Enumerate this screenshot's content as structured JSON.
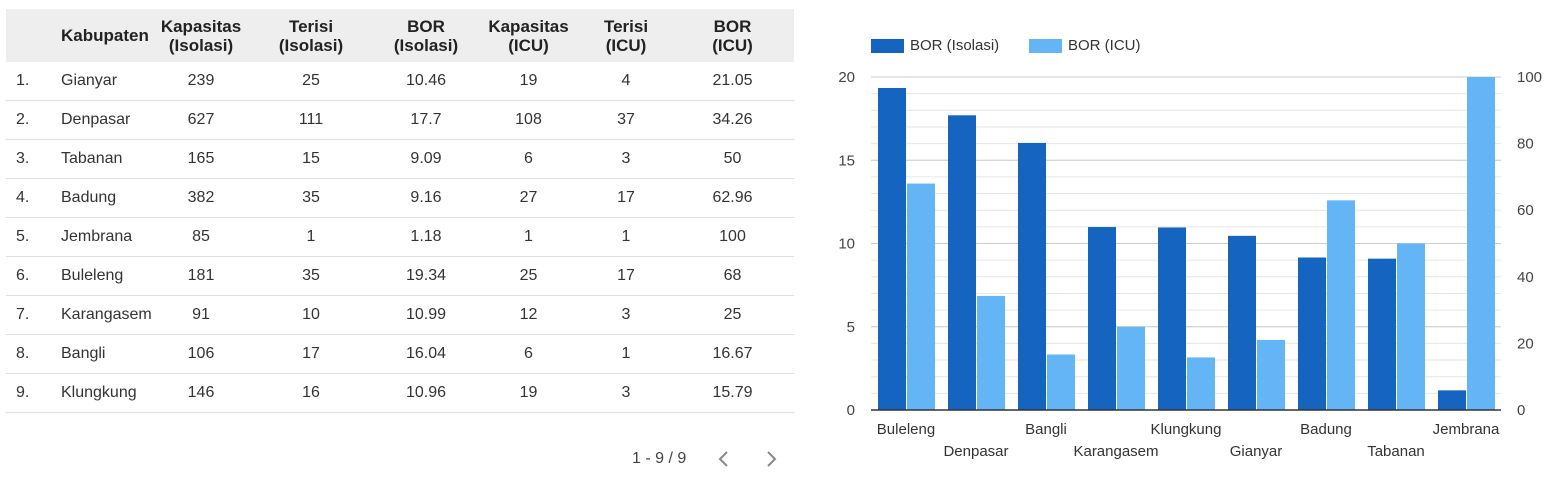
{
  "table": {
    "headers": {
      "name": "Kabupaten",
      "kap_iso": [
        "Kapasitas",
        "(Isolasi)"
      ],
      "ter_iso": [
        "Terisi",
        "(Isolasi)"
      ],
      "bor_iso": [
        "BOR",
        "(Isolasi)"
      ],
      "kap_icu": [
        "Kapasitas",
        "(ICU)"
      ],
      "ter_icu": [
        "Terisi",
        "(ICU)"
      ],
      "bor_icu": [
        "BOR",
        "(ICU)"
      ]
    },
    "rows": [
      {
        "no": "1.",
        "name": "Gianyar",
        "kap_iso": "239",
        "ter_iso": "25",
        "bor_iso": "10.46",
        "kap_icu": "19",
        "ter_icu": "4",
        "bor_icu": "21.05"
      },
      {
        "no": "2.",
        "name": "Denpasar",
        "kap_iso": "627",
        "ter_iso": "111",
        "bor_iso": "17.7",
        "kap_icu": "108",
        "ter_icu": "37",
        "bor_icu": "34.26"
      },
      {
        "no": "3.",
        "name": "Tabanan",
        "kap_iso": "165",
        "ter_iso": "15",
        "bor_iso": "9.09",
        "kap_icu": "6",
        "ter_icu": "3",
        "bor_icu": "50"
      },
      {
        "no": "4.",
        "name": "Badung",
        "kap_iso": "382",
        "ter_iso": "35",
        "bor_iso": "9.16",
        "kap_icu": "27",
        "ter_icu": "17",
        "bor_icu": "62.96"
      },
      {
        "no": "5.",
        "name": "Jembrana",
        "kap_iso": "85",
        "ter_iso": "1",
        "bor_iso": "1.18",
        "kap_icu": "1",
        "ter_icu": "1",
        "bor_icu": "100"
      },
      {
        "no": "6.",
        "name": "Buleleng",
        "kap_iso": "181",
        "ter_iso": "35",
        "bor_iso": "19.34",
        "kap_icu": "25",
        "ter_icu": "17",
        "bor_icu": "68"
      },
      {
        "no": "7.",
        "name": "Karangasem",
        "kap_iso": "91",
        "ter_iso": "10",
        "bor_iso": "10.99",
        "kap_icu": "12",
        "ter_icu": "3",
        "bor_icu": "25"
      },
      {
        "no": "8.",
        "name": "Bangli",
        "kap_iso": "106",
        "ter_iso": "17",
        "bor_iso": "16.04",
        "kap_icu": "6",
        "ter_icu": "1",
        "bor_icu": "16.67"
      },
      {
        "no": "9.",
        "name": "Klungkung",
        "kap_iso": "146",
        "ter_iso": "16",
        "bor_iso": "10.96",
        "kap_icu": "19",
        "ter_icu": "3",
        "bor_icu": "15.79"
      }
    ]
  },
  "pager": {
    "label": "1 - 9 / 9",
    "prev_icon": "chevron-left-icon",
    "next_icon": "chevron-right-icon"
  },
  "chart_data": {
    "type": "bar",
    "categories": [
      "Buleleng",
      "Denpasar",
      "Bangli",
      "Karangasem",
      "Klungkung",
      "Gianyar",
      "Badung",
      "Tabanan",
      "Jembrana"
    ],
    "series": [
      {
        "name": "BOR (Isolasi)",
        "axis": "left",
        "color": "#1565c0",
        "values": [
          19.34,
          17.7,
          16.04,
          10.99,
          10.96,
          10.46,
          9.16,
          9.09,
          1.18
        ]
      },
      {
        "name": "BOR (ICU)",
        "axis": "right",
        "color": "#64b5f6",
        "values": [
          68,
          34.26,
          16.67,
          25,
          15.79,
          21.05,
          62.96,
          50,
          100
        ]
      }
    ],
    "y_left": {
      "range": [
        0,
        20
      ],
      "ticks": [
        0,
        5,
        10,
        15,
        20
      ]
    },
    "y_right": {
      "range": [
        0,
        100
      ],
      "ticks": [
        0,
        20,
        40,
        60,
        80,
        100
      ]
    },
    "legend": "top-left",
    "grid": true
  }
}
